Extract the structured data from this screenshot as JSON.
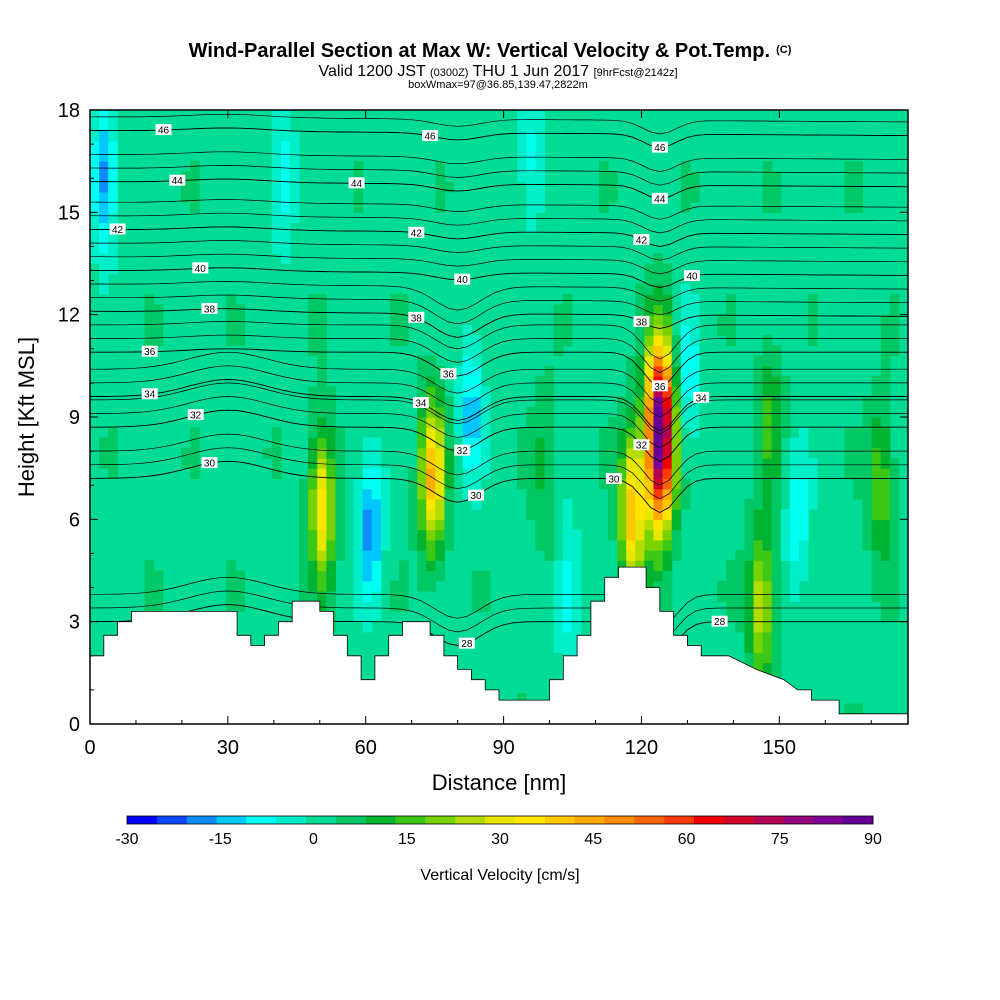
{
  "chart_data": {
    "type": "heatmap",
    "title": "Wind-Parallel Section at Max W: Vertical Velocity & Pot.Temp.",
    "title_mark": "(C)",
    "subtitle_left": "Valid 1200 JST",
    "subtitle_utc": "(0300Z)",
    "subtitle_mid": "THU 1 Jun 2017",
    "subtitle_fcst": "[9hrFcst@2142z]",
    "subtitle_box": "boxWmax=97@36.85,139.47,2822m",
    "xlabel": "Distance [nm]",
    "ylabel": "Height [Kft MSL]",
    "xlim": [
      0,
      178
    ],
    "ylim": [
      0,
      18
    ],
    "x_ticks": [
      "0",
      "30",
      "60",
      "90",
      "120",
      "150"
    ],
    "x_tick_values": [
      0,
      30,
      60,
      90,
      120,
      150
    ],
    "y_ticks": [
      "0",
      "3",
      "6",
      "9",
      "12",
      "15",
      "18"
    ],
    "y_tick_values": [
      0,
      3,
      6,
      9,
      12,
      15,
      18
    ],
    "colorbar": {
      "label": "Vertical Velocity [cm/s]",
      "tick_labels": [
        "-30",
        "-15",
        "0",
        "15",
        "30",
        "45",
        "60",
        "75",
        "90"
      ],
      "min": -30,
      "max": 90,
      "colors": [
        "#0000ff",
        "#0a46ff",
        "#0c8cff",
        "#00c8ff",
        "#00fff0",
        "#00eec8",
        "#00dc96",
        "#00c864",
        "#00b432",
        "#3cc814",
        "#78d200",
        "#b4dc00",
        "#e6e600",
        "#ffe600",
        "#ffc800",
        "#ffaa00",
        "#ff8c00",
        "#ff6400",
        "#ff3c00",
        "#f00000",
        "#d20028",
        "#b40050",
        "#96007d",
        "#7d0096",
        "#640096"
      ]
    },
    "updrafts": [
      {
        "x": 50.5,
        "y": 6.4,
        "w": 33
      },
      {
        "x": 74.5,
        "y": 7.3,
        "w": 40
      },
      {
        "x": 124,
        "y": 8.5,
        "w": 92
      },
      {
        "x": 118,
        "y": 6.2,
        "w": 40
      },
      {
        "x": 146,
        "y": 3.5,
        "w": 26
      },
      {
        "x": 148,
        "y": 9.0,
        "w": 12
      },
      {
        "x": 172,
        "y": 7.0,
        "w": 16
      },
      {
        "x": 99,
        "y": 7.5,
        "w": 8
      }
    ],
    "downdrafts": [
      {
        "x": 61,
        "y": 5.8,
        "w": -20
      },
      {
        "x": 83,
        "y": 9.2,
        "w": -15
      },
      {
        "x": 104,
        "y": 3.8,
        "w": -12
      },
      {
        "x": 130,
        "y": 10.0,
        "w": -12
      },
      {
        "x": 154,
        "y": 6.0,
        "w": -12
      },
      {
        "x": 3,
        "y": 16.0,
        "w": -20
      },
      {
        "x": 42,
        "y": 16.0,
        "w": -12
      },
      {
        "x": 96,
        "y": 16.5,
        "w": -10
      }
    ],
    "terrain": {
      "x": [
        0,
        3,
        3,
        6,
        6,
        9,
        9,
        12,
        12,
        32,
        32,
        35,
        35,
        38,
        38,
        41,
        41,
        44,
        44,
        50,
        50,
        53,
        53,
        56,
        56,
        59,
        59,
        62,
        62,
        65,
        65,
        68,
        68,
        74,
        74,
        77,
        77,
        80,
        80,
        83,
        83,
        86,
        86,
        89,
        89,
        92,
        92,
        100,
        100,
        103,
        103,
        106,
        106,
        109,
        109,
        112,
        112,
        115,
        115,
        118,
        118,
        121,
        121,
        124,
        124,
        127,
        127,
        130,
        130,
        133,
        133,
        136,
        136,
        139,
        139,
        145,
        145,
        151,
        151,
        154,
        154,
        157,
        157,
        163,
        163,
        166,
        166,
        169,
        169,
        178
      ],
      "y": [
        2.0,
        2.0,
        2.6,
        2.6,
        3.0,
        3.0,
        3.3,
        3.3,
        3.3,
        3.3,
        2.6,
        2.6,
        2.3,
        2.3,
        2.6,
        2.6,
        3.0,
        3.0,
        3.6,
        3.6,
        3.3,
        3.3,
        2.6,
        2.6,
        2.0,
        2.0,
        1.3,
        1.3,
        2.0,
        2.0,
        2.6,
        2.6,
        3.0,
        3.0,
        2.6,
        2.6,
        2.0,
        2.0,
        1.6,
        1.6,
        1.3,
        1.3,
        1.0,
        1.0,
        0.7,
        0.7,
        0.7,
        0.7,
        1.3,
        1.3,
        2.0,
        2.0,
        2.6,
        2.6,
        3.6,
        3.6,
        4.3,
        4.3,
        4.6,
        4.6,
        4.6,
        4.6,
        4.0,
        4.0,
        3.3,
        3.3,
        2.6,
        2.6,
        2.3,
        2.3,
        2.0,
        2.0,
        2.0,
        2.0,
        2.0,
        1.6,
        1.6,
        1.3,
        1.3,
        1.0,
        1.0,
        1.0,
        0.7,
        0.7,
        0.3,
        0.3,
        0.3,
        0.3,
        0.3,
        0.3
      ]
    },
    "isentropes": [
      {
        "level": 28,
        "base": 3.0,
        "labels": [
          {
            "text": "28",
            "x": 82
          },
          {
            "text": "28",
            "x": 137
          }
        ]
      },
      {
        "level": 30,
        "base": 7.2,
        "labels": [
          {
            "text": "30",
            "x": 26
          },
          {
            "text": "30",
            "x": 84
          },
          {
            "text": "30",
            "x": 114
          }
        ]
      },
      {
        "level": 32,
        "base": 8.7,
        "labels": [
          {
            "text": "32",
            "x": 23
          },
          {
            "text": "32",
            "x": 81
          },
          {
            "text": "32",
            "x": 120
          }
        ]
      },
      {
        "level": 34,
        "base": 9.6,
        "labels": [
          {
            "text": "34",
            "x": 13
          },
          {
            "text": "34",
            "x": 72
          },
          {
            "text": "34",
            "x": 133
          }
        ]
      },
      {
        "level": 36,
        "base": 10.9,
        "labels": [
          {
            "text": "36",
            "x": 13
          },
          {
            "text": "36",
            "x": 78
          },
          {
            "text": "36",
            "x": 124
          }
        ]
      },
      {
        "level": 38,
        "base": 12.1,
        "labels": [
          {
            "text": "38",
            "x": 26
          },
          {
            "text": "38",
            "x": 71
          },
          {
            "text": "38",
            "x": 120
          }
        ]
      },
      {
        "level": 40,
        "base": 13.3,
        "labels": [
          {
            "text": "40",
            "x": 24
          },
          {
            "text": "40",
            "x": 81
          },
          {
            "text": "40",
            "x": 131
          }
        ]
      },
      {
        "level": 42,
        "base": 14.5,
        "labels": [
          {
            "text": "42",
            "x": 6
          },
          {
            "text": "42",
            "x": 71
          },
          {
            "text": "42",
            "x": 120
          }
        ]
      },
      {
        "level": 44,
        "base": 15.9,
        "labels": [
          {
            "text": "44",
            "x": 19
          },
          {
            "text": "44",
            "x": 58
          },
          {
            "text": "44",
            "x": 124
          }
        ]
      },
      {
        "level": 46,
        "base": 17.4,
        "labels": [
          {
            "text": "46",
            "x": 16
          },
          {
            "text": "46",
            "x": 74
          },
          {
            "text": "46",
            "x": 124
          }
        ]
      }
    ]
  }
}
